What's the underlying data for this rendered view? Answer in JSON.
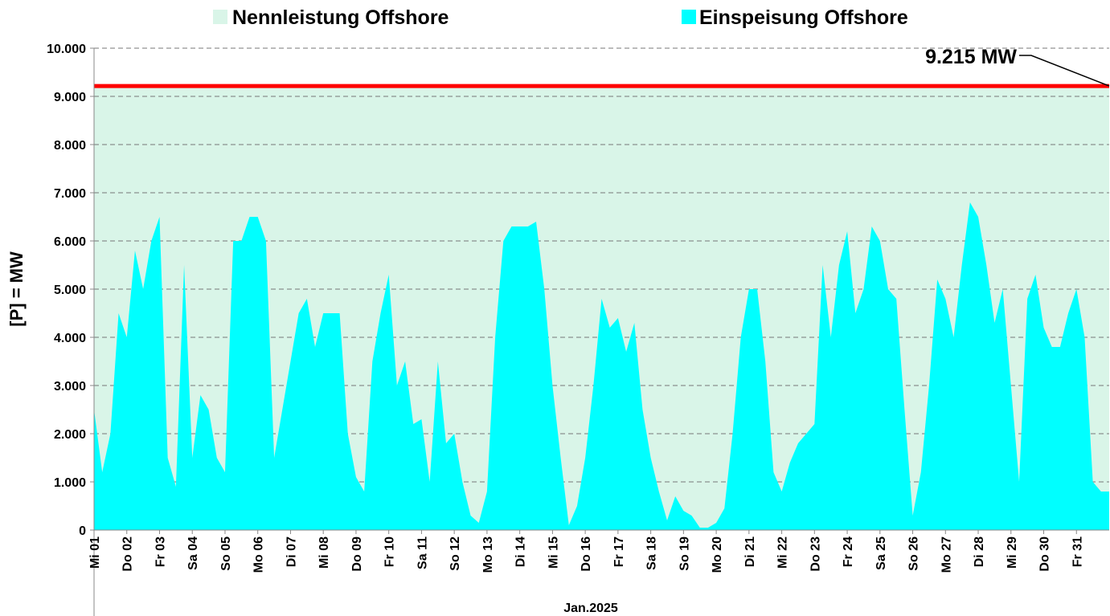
{
  "chart_data": {
    "type": "area",
    "legend_position": "top",
    "y_label": "[P] = MW",
    "x_label": "Jan.2025",
    "rated": {
      "name": "Nennleistung Offshore",
      "value": 9215,
      "label": "9.215 MW",
      "color": "#d9f5e8",
      "line_color": "#ff0000"
    },
    "x": [
      0,
      0.25,
      0.5,
      0.75,
      1,
      1.25,
      1.5,
      1.75,
      2,
      2.25,
      2.5,
      2.75,
      3,
      3.25,
      3.5,
      3.75,
      4,
      4.25,
      4.5,
      4.75,
      5,
      5.25,
      5.5,
      5.75,
      6,
      6.25,
      6.5,
      6.75,
      7,
      7.25,
      7.5,
      7.75,
      8,
      8.25,
      8.5,
      8.75,
      9,
      9.25,
      9.5,
      9.75,
      10,
      10.25,
      10.5,
      10.75,
      11,
      11.25,
      11.5,
      11.75,
      12,
      12.25,
      12.5,
      12.75,
      13,
      13.25,
      13.5,
      13.75,
      14,
      14.25,
      14.5,
      14.75,
      15,
      15.25,
      15.5,
      15.75,
      16,
      16.25,
      16.5,
      16.75,
      17,
      17.25,
      17.5,
      17.75,
      18,
      18.25,
      18.5,
      18.75,
      19,
      19.25,
      19.5,
      19.75,
      20,
      20.25,
      20.5,
      20.75,
      21,
      21.25,
      21.5,
      21.75,
      22,
      22.25,
      22.5,
      22.75,
      23,
      23.25,
      23.5,
      23.75,
      24,
      24.25,
      24.5,
      24.75,
      25,
      25.25,
      25.5,
      25.75,
      26,
      26.25,
      26.5,
      26.75,
      27,
      27.25,
      27.5,
      27.75,
      28,
      28.25,
      28.5,
      28.75,
      29,
      29.25,
      29.5,
      29.75,
      30,
      30.25,
      30.5,
      30.75,
      31
    ],
    "series": [
      {
        "name": "Einspeisung Offshore",
        "color": "#00ffff",
        "values": [
          2500,
          1200,
          2000,
          4500,
          4000,
          5800,
          5000,
          6000,
          6500,
          1500,
          900,
          5500,
          1500,
          2800,
          2500,
          1500,
          1200,
          6000,
          6000,
          6500,
          6500,
          6000,
          1500,
          2500,
          3500,
          4500,
          4800,
          3800,
          4500,
          4500,
          4500,
          2000,
          1100,
          800,
          3500,
          4500,
          5300,
          3000,
          3500,
          2200,
          2300,
          1000,
          3500,
          1800,
          2000,
          1000,
          300,
          150,
          800,
          4000,
          6000,
          6300,
          6300,
          6300,
          6400,
          5000,
          3000,
          1500,
          100,
          500,
          1500,
          3000,
          4800,
          4200,
          4400,
          3700,
          4300,
          2500,
          1500,
          800,
          200,
          700,
          400,
          300,
          50,
          50,
          150,
          450,
          2000,
          4000,
          5000,
          5000,
          3500,
          1200,
          800,
          1400,
          1800,
          2000,
          2200,
          5500,
          4000,
          5500,
          6200,
          4500,
          5000,
          6300,
          6000,
          5000,
          4800,
          2500,
          300,
          1200,
          3000,
          5200,
          4800,
          4000,
          5500,
          6800,
          6500,
          5500,
          4300,
          5000,
          3000,
          1000,
          4800,
          5300,
          4200,
          3800,
          3800,
          4500,
          5000,
          4000,
          1000,
          800,
          800
        ]
      }
    ],
    "xlim": [
      0,
      31
    ],
    "xticks": [
      {
        "value": 0,
        "label": "Mi 01"
      },
      {
        "value": 1,
        "label": "Do 02"
      },
      {
        "value": 2,
        "label": "Fr 03"
      },
      {
        "value": 3,
        "label": "Sa 04"
      },
      {
        "value": 4,
        "label": "So 05"
      },
      {
        "value": 5,
        "label": "Mo 06"
      },
      {
        "value": 6,
        "label": "Di 07"
      },
      {
        "value": 7,
        "label": "Mi 08"
      },
      {
        "value": 8,
        "label": "Do 09"
      },
      {
        "value": 9,
        "label": "Fr 10"
      },
      {
        "value": 10,
        "label": "Sa 11"
      },
      {
        "value": 11,
        "label": "So 12"
      },
      {
        "value": 12,
        "label": "Mo 13"
      },
      {
        "value": 13,
        "label": "Di 14"
      },
      {
        "value": 14,
        "label": "Mi 15"
      },
      {
        "value": 15,
        "label": "Do 16"
      },
      {
        "value": 16,
        "label": "Fr 17"
      },
      {
        "value": 17,
        "label": "Sa 18"
      },
      {
        "value": 18,
        "label": "So 19"
      },
      {
        "value": 19,
        "label": "Mo 20"
      },
      {
        "value": 20,
        "label": "Di 21"
      },
      {
        "value": 21,
        "label": "Mi 22"
      },
      {
        "value": 22,
        "label": "Do 23"
      },
      {
        "value": 23,
        "label": "Fr 24"
      },
      {
        "value": 24,
        "label": "Sa 25"
      },
      {
        "value": 25,
        "label": "So 26"
      },
      {
        "value": 26,
        "label": "Mo 27"
      },
      {
        "value": 27,
        "label": "Di 28"
      },
      {
        "value": 28,
        "label": "Mi 29"
      },
      {
        "value": 29,
        "label": "Do 30"
      },
      {
        "value": 30,
        "label": "Fr 31"
      }
    ],
    "ylim": [
      0,
      10000
    ],
    "yticks": [
      0,
      {
        "value": 1000,
        "label": "1.000"
      },
      {
        "value": 2000,
        "label": "2.000"
      },
      {
        "value": 3000,
        "label": "3.000"
      },
      {
        "value": 4000,
        "label": "4.000"
      },
      {
        "value": 5000,
        "label": "5.000"
      },
      {
        "value": 6000,
        "label": "6.000"
      },
      {
        "value": 7000,
        "label": "7.000"
      },
      {
        "value": 8000,
        "label": "8.000"
      },
      {
        "value": 9000,
        "label": "9.000"
      },
      {
        "value": 10000,
        "label": "10.000"
      }
    ],
    "grid": true
  }
}
